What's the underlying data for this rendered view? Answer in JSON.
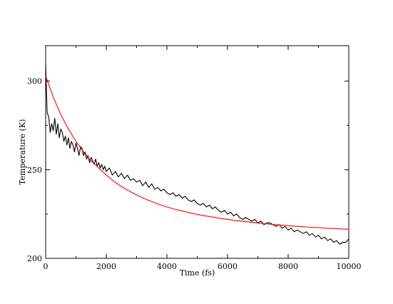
{
  "chart_data": {
    "type": "line",
    "title": "",
    "xlabel": "Time (fs)",
    "ylabel": "Temperature (K)",
    "xlim": [
      0,
      10000
    ],
    "ylim": [
      200,
      320
    ],
    "xticks": [
      0,
      2000,
      4000,
      6000,
      8000,
      10000
    ],
    "yticks": [
      200,
      250,
      300
    ],
    "grid": false,
    "legend": "none",
    "series": [
      {
        "color": "#000000",
        "x": [
          0,
          50,
          100,
          150,
          200,
          250,
          300,
          350,
          400,
          450,
          500,
          550,
          600,
          650,
          700,
          750,
          800,
          850,
          900,
          950,
          1000,
          1050,
          1100,
          1150,
          1200,
          1250,
          1300,
          1350,
          1400,
          1450,
          1500,
          1550,
          1600,
          1650,
          1700,
          1750,
          1800,
          1850,
          1900,
          1950,
          2000,
          2100,
          2200,
          2300,
          2400,
          2500,
          2600,
          2700,
          2800,
          2900,
          3000,
          3100,
          3200,
          3300,
          3400,
          3500,
          3600,
          3700,
          3800,
          3900,
          4000,
          4100,
          4200,
          4300,
          4400,
          4500,
          4600,
          4700,
          4800,
          4900,
          5000,
          5100,
          5200,
          5300,
          5400,
          5500,
          5600,
          5700,
          5800,
          5900,
          6000,
          6100,
          6200,
          6300,
          6400,
          6500,
          6600,
          6700,
          6800,
          6900,
          7000,
          7100,
          7200,
          7300,
          7400,
          7500,
          7600,
          7700,
          7800,
          7900,
          8000,
          8100,
          8200,
          8300,
          8400,
          8500,
          8600,
          8700,
          8800,
          8900,
          9000,
          9100,
          9200,
          9300,
          9400,
          9500,
          9600,
          9700,
          9800,
          9900,
          10000
        ],
        "values": [
          310,
          282,
          280,
          271,
          276,
          272,
          279,
          270,
          276,
          268,
          273,
          271,
          266,
          269,
          264,
          268,
          262,
          266,
          264,
          260,
          265,
          262,
          258,
          263,
          262,
          258,
          260,
          256,
          258,
          254,
          257,
          255,
          253,
          256,
          252,
          254,
          251,
          253,
          250,
          252,
          249,
          251,
          247,
          249,
          246,
          248,
          245,
          247,
          244,
          245,
          243,
          244,
          241,
          243,
          240,
          242,
          239,
          240,
          238,
          239,
          237,
          236,
          237,
          235,
          236,
          234,
          235,
          233,
          232,
          233,
          231,
          230,
          231,
          229,
          230,
          228,
          229,
          227,
          226,
          227,
          225,
          226,
          224,
          225,
          223,
          222,
          223,
          222,
          221,
          222,
          220,
          221,
          219,
          220,
          220,
          219,
          218,
          219,
          217,
          218,
          216,
          217,
          215,
          216,
          215,
          214,
          215,
          213,
          214,
          212,
          213,
          211,
          212,
          210,
          211,
          209,
          210,
          208,
          209,
          209,
          211
        ]
      },
      {
        "color": "#ff0000",
        "x": [
          0,
          250,
          500,
          750,
          1000,
          1250,
          1500,
          1750,
          2000,
          2250,
          2500,
          2750,
          3000,
          3250,
          3500,
          3750,
          4000,
          4250,
          4500,
          4750,
          5000,
          5250,
          5500,
          5750,
          6000,
          6250,
          6500,
          6750,
          7000,
          7250,
          7500,
          7750,
          8000,
          8250,
          8500,
          8750,
          9000,
          9250,
          9500,
          9750,
          10000
        ],
        "values": [
          303,
          291,
          281,
          273,
          266,
          260,
          255,
          251,
          247,
          243.5,
          240.5,
          238,
          235.8,
          233.8,
          232,
          230.4,
          229,
          227.8,
          226.7,
          225.7,
          224.8,
          224,
          223.3,
          222.6,
          222,
          221.4,
          220.9,
          220.4,
          219.9,
          219.5,
          219.1,
          218.8,
          218.4,
          218.1,
          217.8,
          217.5,
          217.3,
          217,
          216.8,
          216.6,
          216.4
        ]
      }
    ]
  }
}
